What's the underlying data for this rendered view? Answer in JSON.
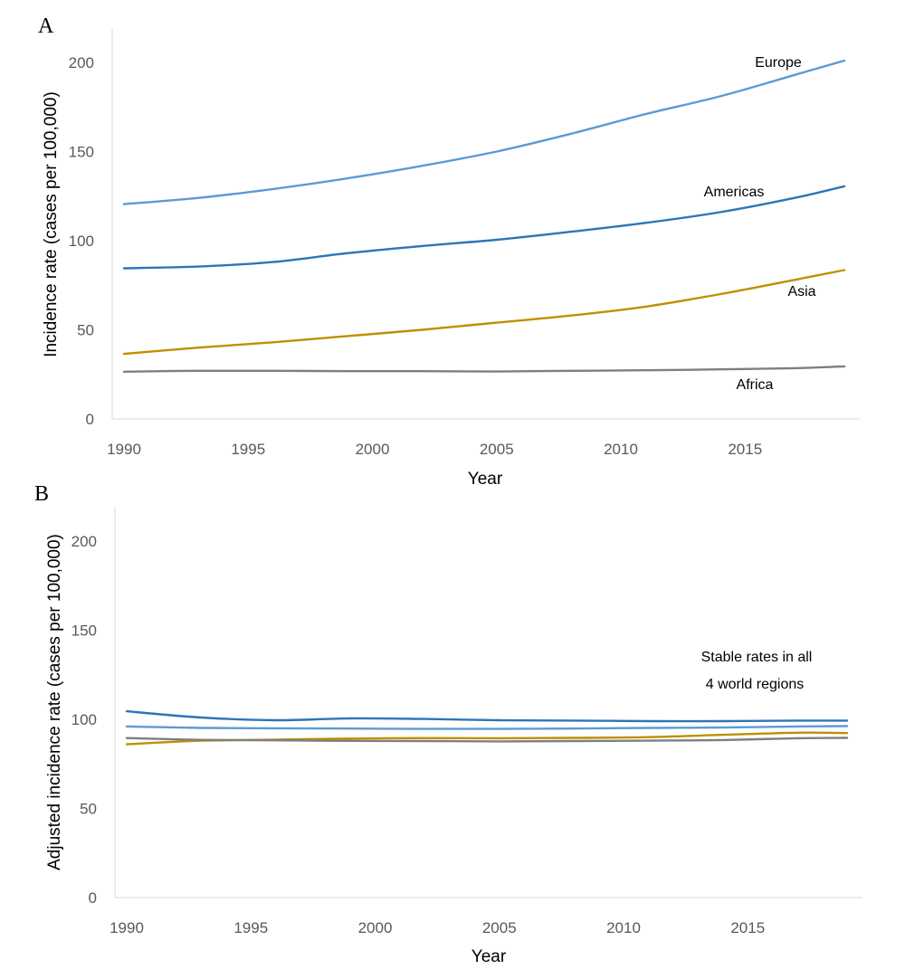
{
  "chart_data": [
    {
      "panel": "A",
      "type": "line",
      "xlabel": "Year",
      "ylabel": "Incidence rate (cases per 100,000)",
      "xlim": [
        1990,
        2019
      ],
      "ylim": [
        0,
        220
      ],
      "x_ticks": [
        "1990",
        "1995",
        "2000",
        "2005",
        "2010",
        "2015"
      ],
      "y_ticks": [
        "0",
        "50",
        "100",
        "150",
        "200"
      ],
      "grid": false,
      "legend": "none",
      "x": [
        1990,
        1993,
        1996,
        1999,
        2002,
        2005,
        2008,
        2011,
        2014,
        2017,
        2019
      ],
      "series": [
        {
          "name": "Europe",
          "color": "#5b9bd5",
          "values": [
            120.5,
            124,
            129,
            135,
            142,
            150,
            160,
            171,
            181,
            193,
            201
          ]
        },
        {
          "name": "Americas",
          "color": "#2e75b6",
          "values": [
            84.5,
            85.5,
            88,
            93,
            97,
            100.5,
            105,
            110,
            116,
            124,
            130.5
          ]
        },
        {
          "name": "Asia",
          "color": "#bf9000",
          "values": [
            36.5,
            40,
            43,
            46.5,
            50,
            54,
            58,
            63,
            70,
            78,
            83.5
          ]
        },
        {
          "name": "Africa",
          "color": "#7f7f7f",
          "values": [
            26.5,
            27,
            27,
            26.8,
            26.8,
            26.6,
            27,
            27.3,
            27.8,
            28.5,
            29.5
          ]
        }
      ]
    },
    {
      "panel": "B",
      "type": "line",
      "xlabel": "Year",
      "ylabel": "Adjusted incidence rate (cases per 100,000)",
      "xlim": [
        1990,
        2019
      ],
      "ylim": [
        0,
        220
      ],
      "x_ticks": [
        "1990",
        "1995",
        "2000",
        "2005",
        "2010",
        "2015"
      ],
      "y_ticks": [
        "0",
        "50",
        "100",
        "150",
        "200"
      ],
      "grid": false,
      "legend": "none",
      "annotation": [
        "Stable rates in all",
        "4 world regions"
      ],
      "x": [
        1990,
        1993,
        1996,
        1999,
        2002,
        2005,
        2008,
        2011,
        2014,
        2017,
        2019
      ],
      "series": [
        {
          "color": "#2e75b6",
          "values": [
            104.5,
            101,
            99.5,
            100.5,
            100.2,
            99.5,
            99.3,
            99,
            99,
            99.3,
            99.3
          ]
        },
        {
          "color": "#5b9bd5",
          "values": [
            96,
            95.2,
            95,
            94.8,
            94.6,
            94.6,
            94.8,
            95.2,
            95.4,
            96,
            96.2
          ]
        },
        {
          "color": "#bf9000",
          "values": [
            86,
            88,
            88.6,
            89.2,
            89.5,
            89.4,
            89.6,
            90,
            91.3,
            92.5,
            92.3
          ]
        },
        {
          "color": "#7f7f7f",
          "values": [
            89.5,
            88.5,
            88.2,
            87.9,
            87.8,
            87.6,
            87.8,
            88,
            88.4,
            89.4,
            89.6
          ]
        }
      ]
    }
  ]
}
